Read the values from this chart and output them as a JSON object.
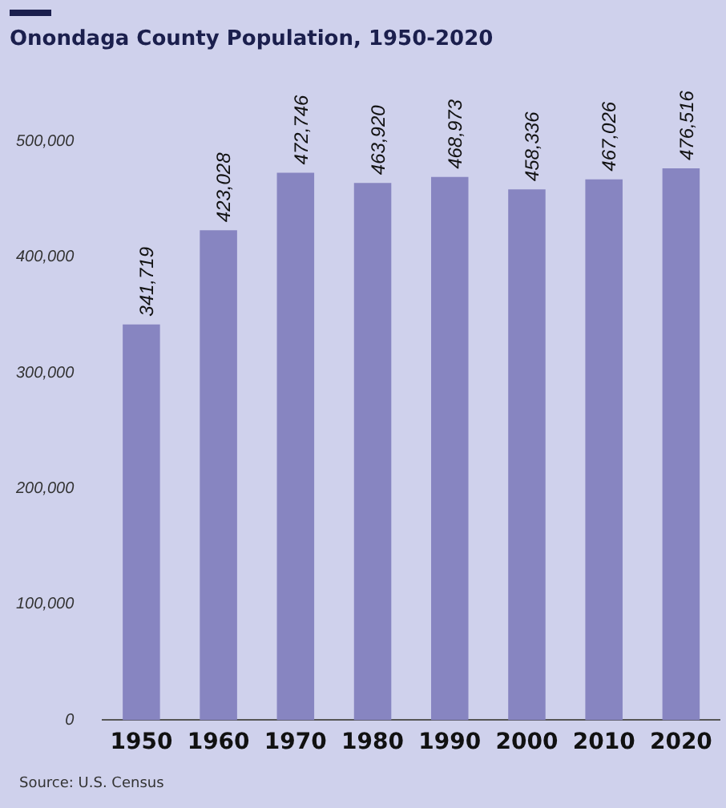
{
  "chart_data": {
    "type": "bar",
    "title": "Onondaga County Population, 1950-2020",
    "categories": [
      "1950",
      "1960",
      "1970",
      "1980",
      "1990",
      "2000",
      "2010",
      "2020"
    ],
    "values": [
      341719,
      423028,
      472746,
      463920,
      468973,
      458336,
      467026,
      476516
    ],
    "value_labels": [
      "341,719",
      "423,028",
      "472,746",
      "463,920",
      "468,973",
      "458,336",
      "467,026",
      "476,516"
    ],
    "color": "#8785c1",
    "ylim": [
      0,
      500000
    ],
    "yticks": [
      0,
      {
        "value": 100000,
        "label": "100,000"
      },
      {
        "value": 200000,
        "label": "200,000"
      },
      {
        "value": 300000,
        "label": "300,000"
      },
      {
        "value": 400000,
        "label": "400,000"
      },
      {
        "value": 500000,
        "label": "500,000"
      }
    ],
    "grid": false,
    "legend": false,
    "annotations": [
      "Source: U.S. Census"
    ]
  }
}
